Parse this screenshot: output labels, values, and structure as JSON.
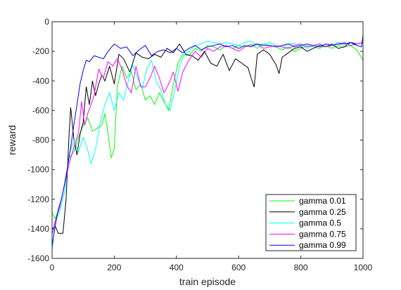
{
  "chart_data": {
    "type": "line",
    "xlabel": "train episode",
    "ylabel": "reward",
    "xlim": [
      0,
      1000
    ],
    "ylim": [
      -1600,
      0
    ],
    "xticks": [
      0,
      200,
      400,
      600,
      800,
      1000
    ],
    "yticks": [
      0,
      -200,
      -400,
      -600,
      -800,
      -1000,
      -1200,
      -1400,
      -1600
    ],
    "grid": false,
    "legend_position": "bottom-right",
    "series": [
      {
        "name": "gamma 0.01",
        "color": "#00ff00",
        "x": [
          0,
          10,
          25,
          40,
          55,
          70,
          85,
          100,
          115,
          130,
          145,
          160,
          170,
          180,
          190,
          200,
          210,
          225,
          240,
          255,
          270,
          285,
          300,
          315,
          330,
          345,
          360,
          375,
          390,
          405,
          420,
          440,
          460,
          480,
          500,
          520,
          540,
          560,
          580,
          600,
          620,
          640,
          660,
          680,
          700,
          720,
          740,
          760,
          780,
          800,
          820,
          840,
          860,
          880,
          900,
          920,
          940,
          960,
          980,
          1000
        ],
        "y": [
          -1290,
          -1330,
          -1250,
          -1100,
          -920,
          -880,
          -780,
          -700,
          -650,
          -740,
          -720,
          -700,
          -620,
          -760,
          -920,
          -860,
          -440,
          -300,
          -380,
          -340,
          -460,
          -420,
          -530,
          -500,
          -560,
          -480,
          -540,
          -600,
          -420,
          -280,
          -220,
          -230,
          -180,
          -200,
          -160,
          -170,
          -190,
          -160,
          -180,
          -160,
          -170,
          -150,
          -180,
          -150,
          -160,
          -170,
          -190,
          -170,
          -200,
          -180,
          -160,
          -170,
          -180,
          -160,
          -180,
          -160,
          -170,
          -160,
          -190,
          -260
        ]
      },
      {
        "name": "gamma 0.25",
        "color": "#000000",
        "x": [
          0,
          10,
          20,
          35,
          45,
          55,
          60,
          70,
          80,
          90,
          100,
          110,
          120,
          130,
          140,
          150,
          160,
          170,
          185,
          200,
          215,
          230,
          250,
          270,
          290,
          310,
          330,
          350,
          370,
          390,
          410,
          430,
          450,
          470,
          490,
          510,
          530,
          550,
          570,
          590,
          610,
          630,
          640,
          650,
          660,
          680,
          700,
          720,
          730,
          740,
          760,
          780,
          800,
          820,
          840,
          860,
          880,
          900,
          920,
          940,
          960,
          980,
          1000
        ],
        "y": [
          -1400,
          -1380,
          -1430,
          -1430,
          -1200,
          -750,
          -580,
          -790,
          -900,
          -760,
          -680,
          -440,
          -560,
          -400,
          -500,
          -420,
          -360,
          -400,
          -300,
          -420,
          -220,
          -250,
          -340,
          -210,
          -240,
          -250,
          -220,
          -240,
          -180,
          -210,
          -150,
          -220,
          -230,
          -260,
          -200,
          -280,
          -300,
          -220,
          -330,
          -250,
          -280,
          -310,
          -380,
          -440,
          -220,
          -190,
          -220,
          -290,
          -350,
          -240,
          -210,
          -180,
          -170,
          -200,
          -180,
          -160,
          -170,
          -150,
          -180,
          -170,
          -140,
          -150,
          -140
        ]
      },
      {
        "name": "gamma 0.5",
        "color": "#00ffff",
        "x": [
          0,
          10,
          25,
          40,
          55,
          70,
          85,
          100,
          115,
          125,
          140,
          155,
          170,
          185,
          200,
          215,
          230,
          245,
          260,
          275,
          290,
          305,
          320,
          335,
          350,
          365,
          380,
          395,
          410,
          425,
          440,
          460,
          480,
          500,
          520,
          540,
          560,
          580,
          600,
          620,
          640,
          660,
          680,
          700,
          720,
          740,
          760,
          780,
          800,
          820,
          840,
          860,
          880,
          900,
          920,
          940,
          960,
          980,
          1000
        ],
        "y": [
          -1550,
          -1350,
          -1280,
          -1150,
          -900,
          -800,
          -880,
          -780,
          -870,
          -960,
          -860,
          -680,
          -560,
          -480,
          -600,
          -480,
          -530,
          -400,
          -290,
          -380,
          -450,
          -320,
          -260,
          -400,
          -460,
          -560,
          -600,
          -460,
          -300,
          -220,
          -200,
          -160,
          -150,
          -130,
          -140,
          -150,
          -140,
          -150,
          -160,
          -140,
          -130,
          -160,
          -150,
          -140,
          -160,
          -170,
          -150,
          -150,
          -160,
          -180,
          -160,
          -150,
          -170,
          -160,
          -140,
          -150,
          -160,
          -150,
          -140
        ]
      },
      {
        "name": "gamma 0.75",
        "color": "#ff00ff",
        "x": [
          0,
          10,
          25,
          40,
          55,
          70,
          85,
          95,
          105,
          115,
          125,
          135,
          150,
          165,
          180,
          195,
          210,
          225,
          240,
          255,
          270,
          285,
          300,
          315,
          330,
          345,
          360,
          375,
          390,
          405,
          420,
          440,
          460,
          480,
          500,
          520,
          540,
          560,
          580,
          600,
          620,
          640,
          660,
          680,
          700,
          720,
          740,
          760,
          780,
          800,
          820,
          840,
          860,
          880,
          900,
          920,
          940,
          960,
          980,
          1000
        ],
        "y": [
          -1440,
          -1350,
          -1250,
          -1100,
          -960,
          -850,
          -750,
          -540,
          -700,
          -620,
          -560,
          -500,
          -320,
          -380,
          -270,
          -300,
          -250,
          -320,
          -430,
          -480,
          -300,
          -440,
          -440,
          -380,
          -300,
          -380,
          -480,
          -420,
          -340,
          -470,
          -340,
          -260,
          -200,
          -240,
          -180,
          -200,
          -170,
          -160,
          -180,
          -200,
          -170,
          -160,
          -150,
          -180,
          -170,
          -160,
          -170,
          -180,
          -160,
          -150,
          -170,
          -160,
          -150,
          -170,
          -160,
          -150,
          -140,
          -160,
          -150,
          -140
        ]
      },
      {
        "name": "gamma 0.99",
        "color": "#0000ff",
        "x": [
          0,
          10,
          20,
          30,
          40,
          50,
          60,
          70,
          80,
          90,
          100,
          110,
          120,
          135,
          150,
          165,
          180,
          200,
          220,
          240,
          260,
          280,
          300,
          320,
          340,
          360,
          380,
          400,
          420,
          440,
          460,
          480,
          500,
          520,
          540,
          560,
          580,
          600,
          620,
          640,
          660,
          680,
          700,
          720,
          740,
          760,
          780,
          800,
          820,
          840,
          860,
          880,
          900,
          920,
          940,
          960,
          980,
          995,
          1000
        ],
        "y": [
          -1520,
          -1380,
          -1270,
          -1200,
          -1100,
          -980,
          -850,
          -700,
          -560,
          -420,
          -330,
          -260,
          -270,
          -230,
          -240,
          -250,
          -200,
          -150,
          -180,
          -170,
          -230,
          -190,
          -160,
          -230,
          -200,
          -190,
          -210,
          -180,
          -210,
          -180,
          -160,
          -190,
          -170,
          -160,
          -150,
          -170,
          -160,
          -180,
          -160,
          -170,
          -150,
          -160,
          -160,
          -170,
          -160,
          -150,
          -170,
          -160,
          -150,
          -160,
          -170,
          -150,
          -160,
          -150,
          -150,
          -140,
          -160,
          -170,
          -90
        ]
      }
    ]
  }
}
